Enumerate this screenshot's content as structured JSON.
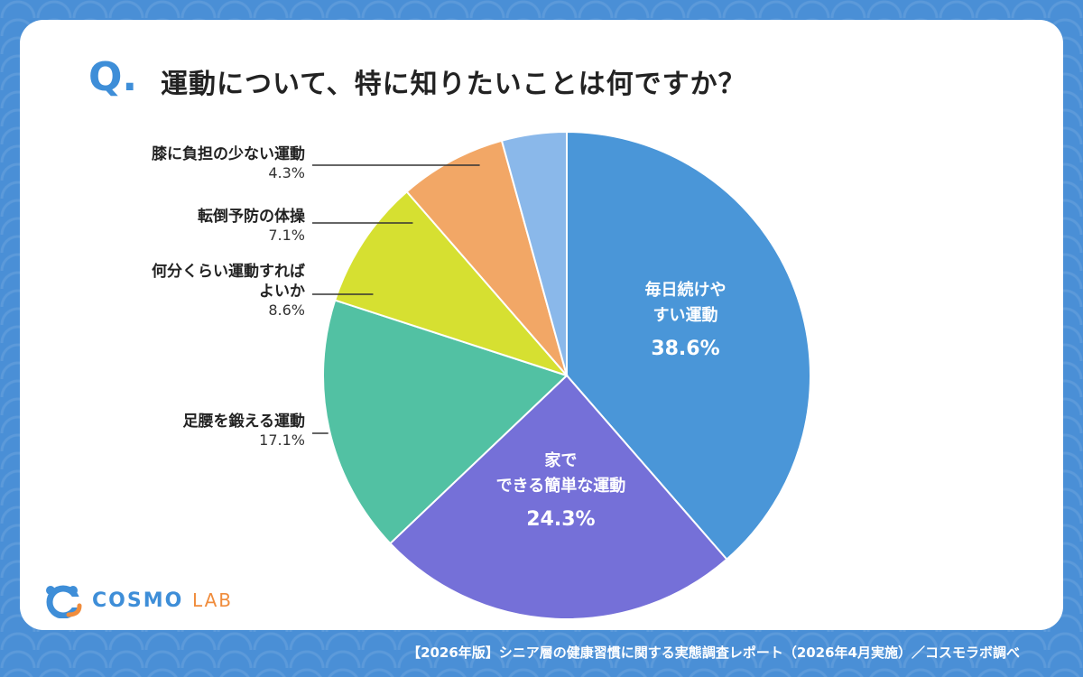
{
  "question": {
    "mark": "Q",
    "dot": ".",
    "text": "運動について、特に知りたいことは何ですか？"
  },
  "chart_data": {
    "type": "pie",
    "title": "運動について、特に知りたいことは何ですか？",
    "slices": [
      {
        "label_lines": [
          "毎日続けや",
          "すい運動"
        ],
        "value_text": "38.6%",
        "value": 38.6,
        "color": "#4a96d8",
        "label_inside": true
      },
      {
        "label_lines": [
          "家で",
          "できる簡単な運動"
        ],
        "value_text": "24.3%",
        "value": 24.3,
        "color": "#7570d8",
        "label_inside": true
      },
      {
        "label_lines": [
          "足腰を鍛える運動"
        ],
        "value_text": "17.1%",
        "value": 17.1,
        "color": "#52c1a3",
        "label_inside": false
      },
      {
        "label_lines": [
          "何分くらい運動すれば",
          "よいか"
        ],
        "value_text": "8.6%",
        "value": 8.6,
        "color": "#d6e031",
        "label_inside": false
      },
      {
        "label_lines": [
          "転倒予防の体操"
        ],
        "value_text": "7.1%",
        "value": 7.1,
        "color": "#f2a766",
        "label_inside": false
      },
      {
        "label_lines": [
          "膝に負担の少ない運動"
        ],
        "value_text": "4.3%",
        "value": 4.3,
        "color": "#8ab8ea",
        "label_inside": false
      }
    ]
  },
  "logo": {
    "name": "COSMO",
    "suffix": "LAB"
  },
  "footer": "【2026年版】シニア層の健康習慣に関する実態調査レポート（2026年4月実施）／コスモラボ調べ"
}
